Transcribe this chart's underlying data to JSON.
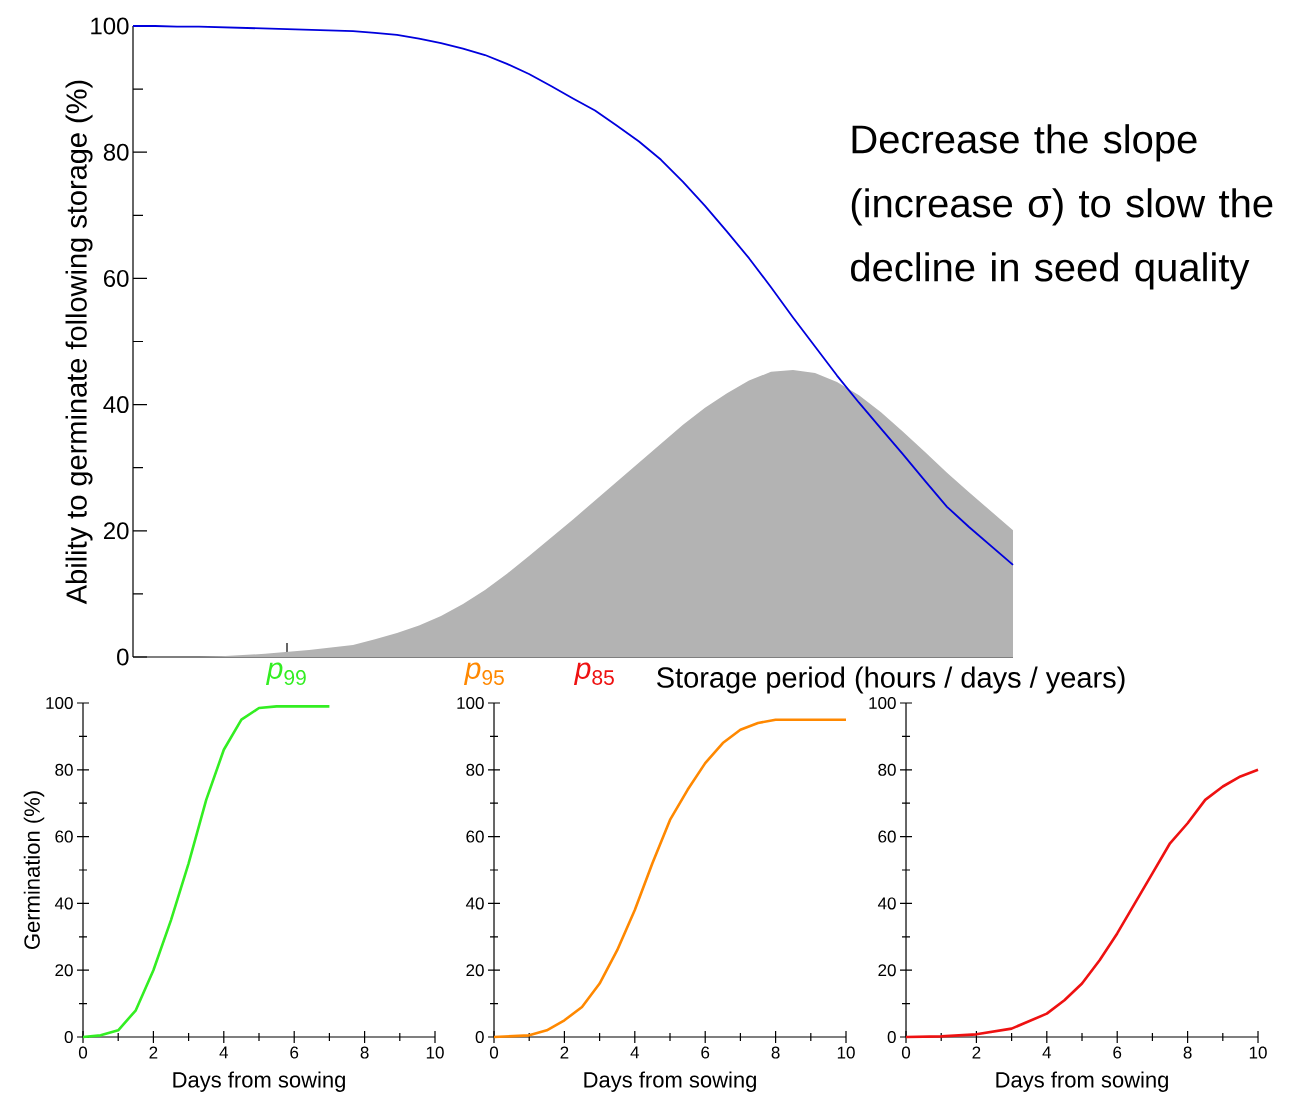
{
  "chart_data": [
    {
      "type": "line",
      "xlabel": "Storage period (hours / days / years)",
      "ylabel": "Ability to germinate following storage (%)",
      "categories": [
        null,
        null,
        null,
        null,
        null,
        null,
        null,
        "*p*$_{99}$",
        null,
        null,
        null,
        null,
        null,
        null,
        null,
        null,
        "*p*$_{95}$",
        null,
        null,
        null,
        null,
        "*p*$_{85}$",
        null,
        null,
        null,
        null,
        null,
        null,
        null,
        null,
        null,
        null,
        null,
        null,
        null,
        null,
        null,
        null,
        null,
        null,
        null
      ],
      "series": [
        {
          "type": "area",
          "color": "#b3b3b3",
          "values": [
            0,
            0,
            0,
            0,
            0.1,
            0.3,
            0.5,
            0.8,
            1.1,
            1.5,
            1.9,
            2.8,
            3.8,
            5.0,
            6.5,
            8.4,
            10.6,
            13.2,
            16.0,
            18.9,
            21.8,
            24.8,
            27.8,
            30.8,
            33.8,
            36.8,
            39.5,
            41.8,
            43.8,
            45.2,
            45.5,
            45.0,
            43.6,
            41.5,
            38.8,
            35.7,
            32.5,
            29.2,
            26.1,
            23.1,
            20.1
          ]
        },
        {
          "color": "#0000dd",
          "values": [
            100,
            100,
            99.9,
            99.9,
            99.8,
            99.7,
            99.6,
            99.5,
            99.4,
            99.3,
            99.2,
            98.9,
            98.6,
            98.0,
            97.3,
            96.4,
            95.4,
            94.0,
            92.4,
            90.5,
            88.5,
            86.6,
            84.2,
            81.7,
            78.8,
            75.3,
            71.5,
            67.4,
            63.2,
            58.6,
            53.8,
            49.2,
            44.6,
            40.3,
            36.2,
            32.1,
            27.9,
            23.8,
            20.6,
            17.6,
            14.6
          ]
        }
      ],
      "ylim": [
        0,
        100
      ],
      "yticks": [
        0,
        20,
        40,
        60,
        80,
        100
      ],
      "annotations": [
        "Decrease the slope (increase σ) to slow the decline in seed quality"
      ]
    },
    {
      "type": "line",
      "xlabel": "Days from sowing",
      "ylabel": "Germination (%)",
      "x": [
        0,
        0.5,
        1,
        1.5,
        2,
        2.5,
        3,
        3.5,
        4,
        4.5,
        5,
        5.5,
        6,
        7
      ],
      "series": [
        {
          "color": "#33ee22",
          "values": [
            0,
            0.5,
            2,
            8,
            20,
            35,
            52,
            71,
            86,
            95,
            98.5,
            99,
            99,
            99
          ]
        }
      ],
      "xlim": [
        0,
        10
      ],
      "xticks": [
        0,
        2,
        4,
        6,
        8,
        10
      ],
      "ylim": [
        0,
        100
      ],
      "yticks": [
        0,
        20,
        40,
        60,
        80,
        100
      ]
    },
    {
      "type": "line",
      "xlabel": "Days from sowing",
      "x": [
        0,
        1,
        1.5,
        2,
        2.5,
        3,
        3.5,
        4,
        4.5,
        5,
        5.5,
        6,
        6.5,
        7,
        7.5,
        8,
        9,
        10
      ],
      "series": [
        {
          "color": "#ff8800",
          "values": [
            0,
            0.5,
            2,
            5,
            9,
            16,
            26,
            38,
            52,
            65,
            74,
            82,
            88,
            92,
            94,
            95,
            95,
            95
          ]
        }
      ],
      "xlim": [
        0,
        10
      ],
      "xticks": [
        0,
        2,
        4,
        6,
        8,
        10
      ],
      "ylim": [
        0,
        100
      ],
      "yticks": [
        0,
        20,
        40,
        60,
        80,
        100
      ]
    },
    {
      "type": "line",
      "xlabel": "Days from sowing",
      "x": [
        0,
        1,
        2,
        3,
        4,
        4.5,
        5,
        5.5,
        6,
        6.5,
        7,
        7.5,
        8,
        8.5,
        9,
        9.5,
        10
      ],
      "series": [
        {
          "color": "#ee1111",
          "values": [
            0,
            0.2,
            0.8,
            2.5,
            7,
            11,
            16,
            23,
            31,
            40,
            49,
            58,
            64,
            71,
            75,
            78,
            80
          ]
        }
      ],
      "xlim": [
        0,
        10
      ],
      "xticks": [
        0,
        2,
        4,
        6,
        8,
        10
      ],
      "ylim": [
        0,
        100
      ],
      "yticks": [
        0,
        20,
        40,
        60,
        80,
        100
      ]
    }
  ]
}
